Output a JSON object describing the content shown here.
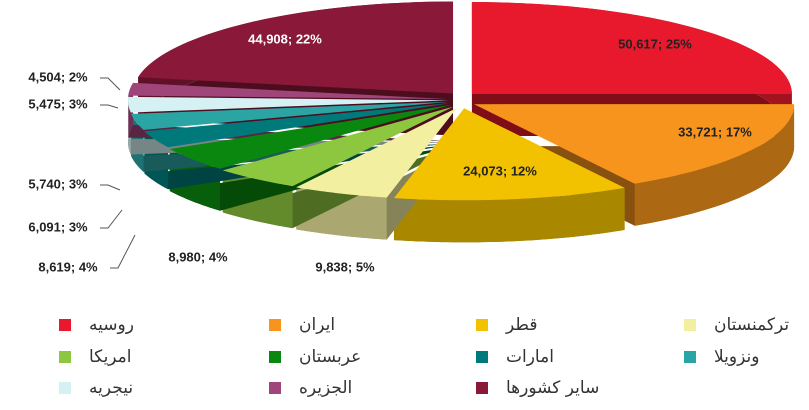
{
  "chart_data": {
    "type": "pie",
    "categories": [
      "روسیه",
      "ایران",
      "قطر",
      "ترکمنستان",
      "امریکا",
      "عربستان",
      "امارات",
      "ونزویلا",
      "نیجریه",
      "الجزیره",
      "سایر کشورها"
    ],
    "values": [
      50617,
      33721,
      24073,
      9838,
      8980,
      8619,
      6091,
      5740,
      5475,
      4504,
      44908
    ],
    "value_labels": [
      "50,617; 25%",
      "33,721; 17%",
      "24,073; 12%",
      "9,838; 5%",
      "8,980; 4%",
      "8,619; 4%",
      "6,091; 3%",
      "5,740; 3%",
      "5,475; 3%",
      "4,504; 2%",
      "44,908; 22%"
    ],
    "colors": [
      "#e8192c",
      "#f7941d",
      "#f2c200",
      "#f3efa0",
      "#8dc63f",
      "#0a870f",
      "#00797a",
      "#2ba5a3",
      "#d6f1f4",
      "#a0457a",
      "#8a1838"
    ],
    "legend": "bottom"
  }
}
